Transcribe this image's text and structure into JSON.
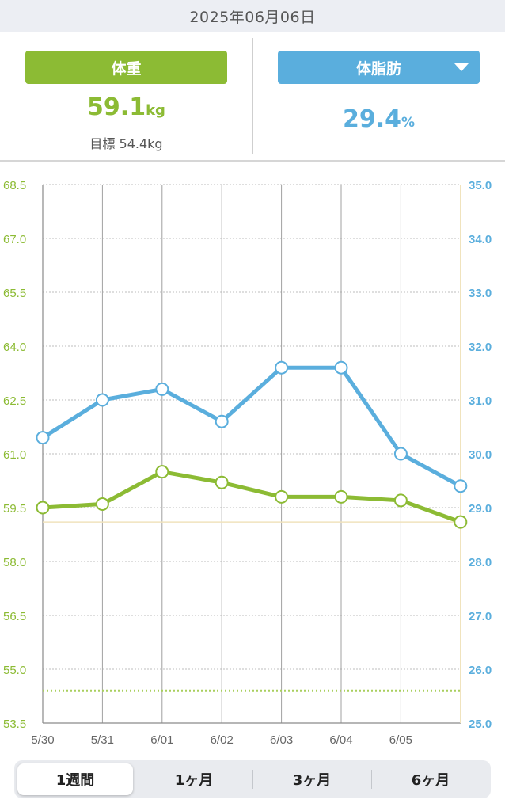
{
  "header": {
    "date": "2025年06月06日"
  },
  "weight_panel": {
    "label": "体重",
    "value": "59.1",
    "unit": "kg",
    "goal_text": "目標 54.4kg"
  },
  "fat_panel": {
    "label": "体脂肪",
    "value": "29.4",
    "unit": "%",
    "dropdown_icon": "triangle-down-icon"
  },
  "period_tabs": [
    {
      "label": "1週間",
      "active": true
    },
    {
      "label": "1ヶ月",
      "active": false
    },
    {
      "label": "3ヶ月",
      "active": false
    },
    {
      "label": "6ヶ月",
      "active": false
    }
  ],
  "colors": {
    "weight": "#8cbb34",
    "fat": "#5aaedd",
    "current_weight_line": "#f0e3bd",
    "goal_line": "#a9cf5e"
  },
  "chart_data": {
    "type": "line",
    "x": [
      "5/30",
      "5/31",
      "6/01",
      "6/02",
      "6/03",
      "6/04",
      "6/05",
      ""
    ],
    "series": [
      {
        "name": "体重",
        "axis": "left",
        "unit": "kg",
        "values": [
          59.5,
          59.6,
          60.5,
          60.2,
          59.8,
          59.8,
          59.7,
          59.1
        ]
      },
      {
        "name": "体脂肪",
        "axis": "right",
        "unit": "%",
        "values": [
          30.3,
          31.0,
          31.2,
          30.6,
          31.6,
          31.6,
          30.0,
          29.4
        ]
      }
    ],
    "y_left": {
      "ylim": [
        53.5,
        68.5
      ],
      "ticks": [
        "68.5",
        "67.0",
        "65.5",
        "64.0",
        "62.5",
        "61.0",
        "59.5",
        "58.0",
        "56.5",
        "55.0",
        "53.5"
      ]
    },
    "y_right": {
      "ylim": [
        25.0,
        35.0
      ],
      "ticks": [
        "35.0",
        "34.0",
        "33.0",
        "32.0",
        "31.0",
        "30.0",
        "29.0",
        "28.0",
        "27.0",
        "26.0",
        "25.0"
      ]
    },
    "reference_lines": [
      {
        "name": "current-weight",
        "axis": "left",
        "value": 59.1,
        "style": "solid"
      },
      {
        "name": "goal-weight",
        "axis": "left",
        "value": 54.4,
        "style": "dotted"
      }
    ],
    "grid": true
  }
}
